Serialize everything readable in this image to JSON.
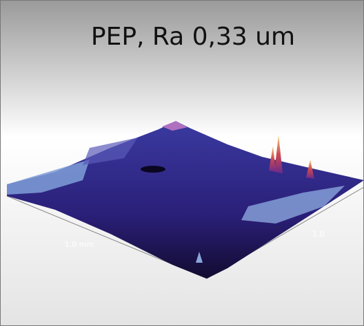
{
  "header": {
    "title": "PEP, Ra 0,33 um"
  },
  "axes": {
    "left_label": "1.0 mm",
    "right_label": "1.0"
  }
}
